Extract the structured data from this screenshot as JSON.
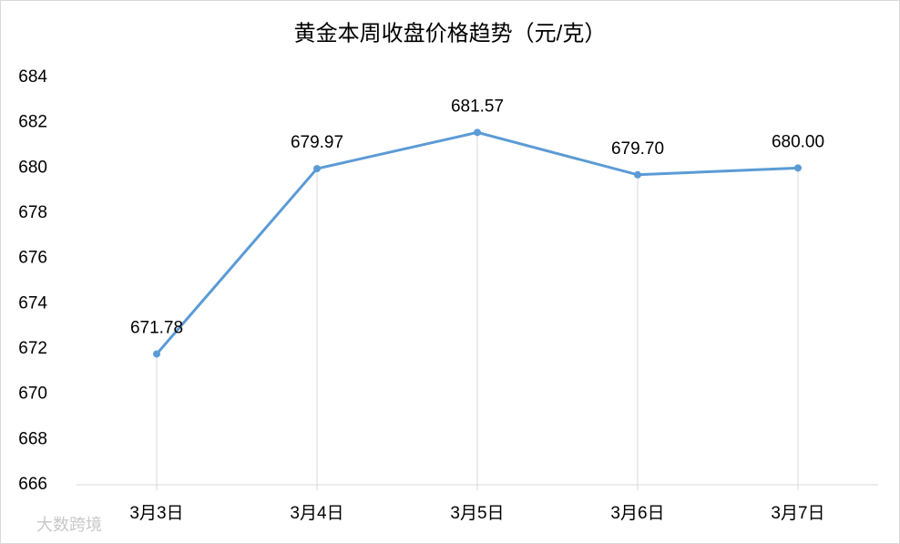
{
  "chart_data": {
    "type": "line",
    "title": "黄金本周收盘价格趋势（元/克）",
    "categories": [
      "3月3日",
      "3月4日",
      "3月5日",
      "3月6日",
      "3月7日"
    ],
    "values": [
      671.78,
      679.97,
      681.57,
      679.7,
      680
    ],
    "value_labels": [
      "671.78",
      "679.97",
      "681.57",
      "679.70",
      "680.00"
    ],
    "color": "#5b9bd5",
    "ylim": [
      666,
      684
    ],
    "yticks": [
      666,
      668,
      670,
      672,
      674,
      676,
      678,
      680,
      682,
      684
    ],
    "grid": false,
    "drop_lines": true,
    "watermark": "大数跨境"
  }
}
